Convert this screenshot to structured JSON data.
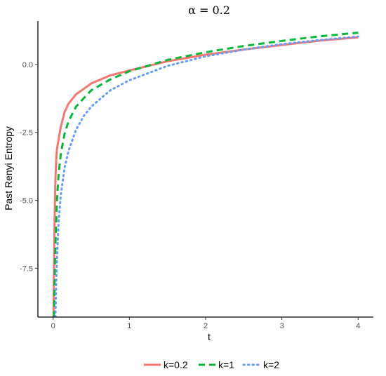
{
  "chart_data": {
    "type": "line",
    "title": "α = 0.2",
    "xlabel": "t",
    "ylabel": "Past Renyi Entropy",
    "xlim": [
      -0.2,
      4.2
    ],
    "ylim": [
      -9.3,
      1.6
    ],
    "x_ticks": [
      0,
      1,
      2,
      3,
      4
    ],
    "x_tick_labels": [
      "0",
      "1",
      "2",
      "3",
      "4"
    ],
    "y_ticks": [
      -7.5,
      -5.0,
      -2.5,
      0.0
    ],
    "y_tick_labels": [
      "-7.5",
      "-5.0",
      "-2.5",
      "0.0"
    ],
    "grid": false,
    "legend_position": "bottom",
    "series": [
      {
        "name": "k=0.2",
        "color": "#F8766D",
        "style": "solid",
        "x": [
          0.005,
          0.01,
          0.02,
          0.03,
          0.04,
          0.05,
          0.1,
          0.15,
          0.2,
          0.3,
          0.5,
          0.75,
          1,
          1.5,
          2,
          2.5,
          3,
          3.5,
          4
        ],
        "y": [
          -9.3,
          -7.8,
          -5.6,
          -4.2,
          -3.5,
          -3.1,
          -2.3,
          -1.75,
          -1.45,
          -1.1,
          -0.7,
          -0.4,
          -0.22,
          0.12,
          0.36,
          0.55,
          0.72,
          0.88,
          1.0
        ]
      },
      {
        "name": "k=1",
        "color": "#00BA38",
        "style": "dashed",
        "x": [
          0.01,
          0.02,
          0.03,
          0.05,
          0.07,
          0.1,
          0.15,
          0.2,
          0.3,
          0.5,
          0.75,
          1,
          1.5,
          2,
          2.5,
          3,
          3.5,
          4
        ],
        "y": [
          -9.3,
          -7.9,
          -6.6,
          -5.0,
          -4.1,
          -3.3,
          -2.55,
          -2.1,
          -1.55,
          -0.95,
          -0.55,
          -0.25,
          0.17,
          0.45,
          0.68,
          0.87,
          1.04,
          1.17
        ]
      },
      {
        "name": "k=2",
        "color": "#619CFF",
        "style": "dotted",
        "x": [
          0.03,
          0.04,
          0.05,
          0.07,
          0.1,
          0.15,
          0.2,
          0.3,
          0.4,
          0.5,
          0.75,
          1,
          1.5,
          2,
          2.5,
          3,
          3.5,
          4
        ],
        "y": [
          -9.3,
          -8.0,
          -7.1,
          -5.9,
          -4.8,
          -3.8,
          -3.2,
          -2.4,
          -1.9,
          -1.55,
          -0.95,
          -0.58,
          -0.05,
          0.3,
          0.55,
          0.75,
          0.9,
          1.03
        ]
      }
    ]
  }
}
